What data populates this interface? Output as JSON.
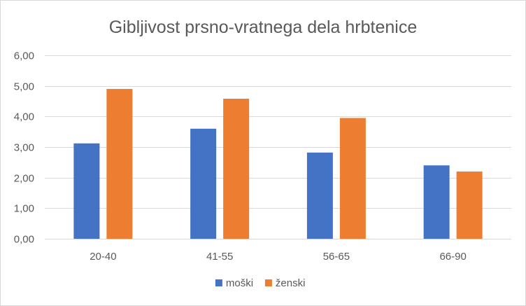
{
  "chart_data": {
    "type": "bar",
    "title": "Gibljivost prsno-vratnega dela hrbtenice",
    "categories": [
      "20-40",
      "41-55",
      "56-65",
      "66-90"
    ],
    "series": [
      {
        "name": "moški",
        "values": [
          3.12,
          3.6,
          2.82,
          2.4
        ],
        "color": "#4472c4"
      },
      {
        "name": "ženski",
        "values": [
          4.9,
          4.58,
          3.95,
          2.2
        ],
        "color": "#ed7d31"
      }
    ],
    "ylim": [
      0,
      6
    ],
    "ystep": 1,
    "ytick_labels": [
      "0,00",
      "1,00",
      "2,00",
      "3,00",
      "4,00",
      "5,00",
      "6,00"
    ],
    "grid": true,
    "legend": "bottom"
  }
}
